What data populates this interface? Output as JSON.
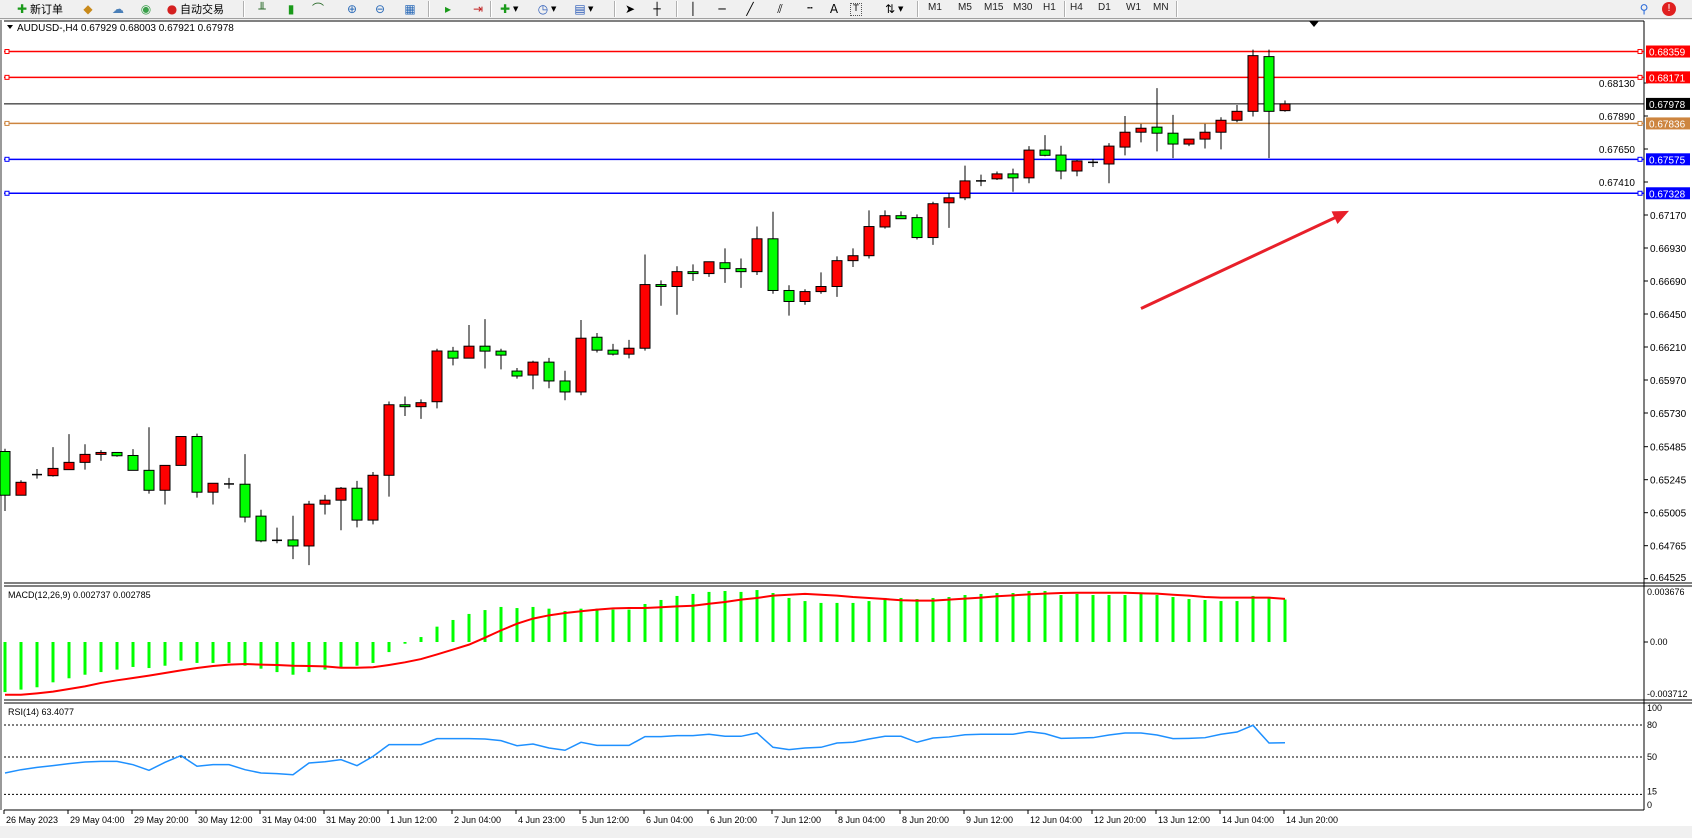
{
  "toolbar": {
    "items": [
      {
        "icon": "new-order-icon",
        "label": "新订单"
      },
      {
        "icon": "market-watch-icon",
        "label": ""
      },
      {
        "icon": "data-window-icon",
        "label": ""
      },
      {
        "icon": "signals-icon",
        "label": ""
      },
      {
        "icon": "auto-trading-icon",
        "label": "自动交易"
      }
    ],
    "chart_tools": [
      "bar-chart-icon",
      "candlestick-icon",
      "line-chart-icon",
      "zoom-in-icon",
      "zoom-out-icon",
      "tile-windows-icon",
      "auto-scroll-icon",
      "chart-shift-icon",
      "indicators-icon",
      "periods-icon",
      "templates-icon"
    ],
    "draw_tools": [
      "cursor-icon",
      "crosshair-icon",
      "vertical-line-icon",
      "horizontal-line-icon",
      "trendline-icon",
      "channel-icon",
      "fibonacci-icon",
      "text-icon",
      "text-label-icon",
      "arrows-icon"
    ],
    "timeframes": [
      "M1",
      "M5",
      "M15",
      "M30",
      "H1",
      "H4",
      "D1",
      "W1",
      "MN"
    ],
    "active_timeframe": "H4",
    "search_icon": "search-icon",
    "messages_icon": "chat-notification-icon"
  },
  "chart_data": {
    "type": "candlestick",
    "title": "AUDUSD-,H4  0.67929 0.68003 0.67921 0.67978",
    "symbol": "AUDUSD-",
    "period": "H4",
    "colors": {
      "bull": "#ff0000",
      "bear": "#00ff00",
      "outline": "#000000",
      "macd_hist": "#00ff00",
      "macd_signal": "#ff0000",
      "rsi": "#1e90ff"
    },
    "price_range": [
      0.6445,
      0.6848
    ],
    "price_ticks": [
      "0.68130",
      "0.67890",
      "0.67650",
      "0.67410",
      "0.67170",
      "0.66930",
      "0.66690",
      "0.66450",
      "0.66210",
      "0.65970",
      "0.65730",
      "0.65485",
      "0.65245",
      "0.65005",
      "0.64765",
      "0.64525"
    ],
    "levels": [
      {
        "value": "0.68359",
        "color": "#ff0000",
        "label_bg": "#ff0000"
      },
      {
        "value": "0.68171",
        "color": "#ff0000",
        "label_bg": "#ff0000"
      },
      {
        "value": "0.67978",
        "color": "#000000",
        "label_bg": "#000000",
        "current": true
      },
      {
        "value": "0.67836",
        "color": "#cd853f",
        "label_bg": "#cd853f"
      },
      {
        "value": "0.67575",
        "color": "#0000ff",
        "label_bg": "#0000ff"
      },
      {
        "value": "0.67328",
        "color": "#0000ff",
        "label_bg": "#0000ff"
      }
    ],
    "annotation_arrow": {
      "color": "#e8202a",
      "from_price": 0.6649,
      "to_price": 0.672,
      "from_bar": 71,
      "to_bar": 84
    },
    "time_labels": [
      "26 May 2023",
      "29 May 04:00",
      "29 May 20:00",
      "30 May 12:00",
      "31 May 04:00",
      "31 May 20:00",
      "1 Jun 12:00",
      "2 Jun 04:00",
      "4 Jun 23:00",
      "5 Jun 12:00",
      "6 Jun 04:00",
      "6 Jun 20:00",
      "7 Jun 12:00",
      "8 Jun 04:00",
      "8 Jun 20:00",
      "9 Jun 12:00",
      "12 Jun 04:00",
      "12 Jun 20:00",
      "13 Jun 12:00",
      "14 Jun 04:00",
      "14 Jun 20:00"
    ],
    "ohlc": [
      [
        0.6545,
        0.6547,
        0.65017,
        0.65132
      ],
      [
        0.65132,
        0.65241,
        0.65132,
        0.65226
      ],
      [
        0.65282,
        0.65323,
        0.65253,
        0.65282
      ],
      [
        0.65274,
        0.65482,
        0.65267,
        0.65327
      ],
      [
        0.65318,
        0.65576,
        0.65318,
        0.65371
      ],
      [
        0.65371,
        0.65503,
        0.65318,
        0.65429
      ],
      [
        0.65429,
        0.6546,
        0.65383,
        0.65443
      ],
      [
        0.65443,
        0.65443,
        0.65412,
        0.65419
      ],
      [
        0.65421,
        0.65467,
        0.65313,
        0.65313
      ],
      [
        0.65313,
        0.65626,
        0.65144,
        0.65168
      ],
      [
        0.65168,
        0.65349,
        0.65065,
        0.65349
      ],
      [
        0.65349,
        0.65559,
        0.65349,
        0.65559
      ],
      [
        0.65559,
        0.6558,
        0.65115,
        0.65154
      ],
      [
        0.65154,
        0.65219,
        0.65065,
        0.65219
      ],
      [
        0.65214,
        0.65258,
        0.6518,
        0.65214
      ],
      [
        0.65212,
        0.65431,
        0.64935,
        0.64973
      ],
      [
        0.6498,
        0.65026,
        0.6479,
        0.648
      ],
      [
        0.64804,
        0.64896,
        0.64783,
        0.64804
      ],
      [
        0.64807,
        0.64983,
        0.64667,
        0.64763
      ],
      [
        0.64763,
        0.65091,
        0.64624,
        0.65067
      ],
      [
        0.65067,
        0.65135,
        0.64992,
        0.65096
      ],
      [
        0.65096,
        0.65192,
        0.64877,
        0.65183
      ],
      [
        0.65183,
        0.65236,
        0.64898,
        0.64951
      ],
      [
        0.64951,
        0.65301,
        0.6492,
        0.65277
      ],
      [
        0.65277,
        0.65814,
        0.65122,
        0.6579
      ],
      [
        0.6579,
        0.6585,
        0.65708,
        0.65776
      ],
      [
        0.65776,
        0.65829,
        0.65687,
        0.65805
      ],
      [
        0.65812,
        0.66197,
        0.65764,
        0.66181
      ],
      [
        0.6618,
        0.66211,
        0.66076,
        0.66129
      ],
      [
        0.66129,
        0.6637,
        0.66129,
        0.66216
      ],
      [
        0.66216,
        0.66413,
        0.66054,
        0.6618
      ],
      [
        0.6618,
        0.66197,
        0.66047,
        0.66151
      ],
      [
        0.66035,
        0.66057,
        0.6598,
        0.65999
      ],
      [
        0.66006,
        0.6611,
        0.65903,
        0.661
      ],
      [
        0.661,
        0.66131,
        0.6591,
        0.65963
      ],
      [
        0.65963,
        0.66037,
        0.65823,
        0.65883
      ],
      [
        0.65883,
        0.66406,
        0.65859,
        0.66274
      ],
      [
        0.66281,
        0.66312,
        0.6617,
        0.66187
      ],
      [
        0.66187,
        0.66233,
        0.66148,
        0.66158
      ],
      [
        0.66158,
        0.66262,
        0.66127,
        0.66201
      ],
      [
        0.66201,
        0.66883,
        0.66184,
        0.66664
      ],
      [
        0.66664,
        0.66695,
        0.6651,
        0.6665
      ],
      [
        0.6665,
        0.66797,
        0.66445,
        0.66758
      ],
      [
        0.66758,
        0.66811,
        0.66691,
        0.66744
      ],
      [
        0.66744,
        0.6683,
        0.6672,
        0.6683
      ],
      [
        0.66823,
        0.66927,
        0.66676,
        0.6678
      ],
      [
        0.6678,
        0.66854,
        0.6664,
        0.66758
      ],
      [
        0.66758,
        0.67086,
        0.66734,
        0.66997
      ],
      [
        0.66997,
        0.67194,
        0.66597,
        0.66621
      ],
      [
        0.66621,
        0.66659,
        0.66438,
        0.66541
      ],
      [
        0.66541,
        0.6663,
        0.66517,
        0.66613
      ],
      [
        0.66613,
        0.66753,
        0.66597,
        0.6665
      ],
      [
        0.6665,
        0.66869,
        0.66575,
        0.66838
      ],
      [
        0.66838,
        0.66927,
        0.66792,
        0.66874
      ],
      [
        0.66874,
        0.67204,
        0.66854,
        0.67086
      ],
      [
        0.67083,
        0.67204,
        0.67071,
        0.67165
      ],
      [
        0.67165,
        0.67196,
        0.67143,
        0.67143
      ],
      [
        0.67151,
        0.67175,
        0.66992,
        0.67006
      ],
      [
        0.67006,
        0.67266,
        0.66953,
        0.67252
      ],
      [
        0.67259,
        0.67331,
        0.67076,
        0.67295
      ],
      [
        0.67295,
        0.67529,
        0.67278,
        0.67418
      ],
      [
        0.67418,
        0.67464,
        0.6738,
        0.67418
      ],
      [
        0.67433,
        0.67486,
        0.67425,
        0.67469
      ],
      [
        0.67469,
        0.67507,
        0.67339,
        0.6744
      ],
      [
        0.6744,
        0.67671,
        0.67401,
        0.67642
      ],
      [
        0.67642,
        0.67751,
        0.67597,
        0.67604
      ],
      [
        0.67606,
        0.67674,
        0.6743,
        0.6749
      ],
      [
        0.6749,
        0.6757,
        0.67452,
        0.67563
      ],
      [
        0.67553,
        0.67577,
        0.67519,
        0.67553
      ],
      [
        0.67541,
        0.67693,
        0.67401,
        0.67671
      ],
      [
        0.67664,
        0.6789,
        0.67604,
        0.67772
      ],
      [
        0.67772,
        0.67833,
        0.67698,
        0.67801
      ],
      [
        0.67809,
        0.68093,
        0.67633,
        0.67765
      ],
      [
        0.67765,
        0.67898,
        0.67584,
        0.67686
      ],
      [
        0.67686,
        0.67722,
        0.67671,
        0.67722
      ],
      [
        0.67722,
        0.67833,
        0.67654,
        0.67772
      ],
      [
        0.67772,
        0.67881,
        0.67647,
        0.67859
      ],
      [
        0.67859,
        0.6797,
        0.67845,
        0.67924
      ],
      [
        0.67924,
        0.68373,
        0.67886,
        0.68329
      ],
      [
        0.68322,
        0.68373,
        0.67584,
        0.67924
      ],
      [
        0.67929,
        0.68003,
        0.67921,
        0.67978
      ]
    ],
    "macd": {
      "label": "MACD(12,26,9) 0.002737 0.002785",
      "ticks": [
        "0.003676",
        "0.00",
        "-0.003712"
      ],
      "range": [
        -0.003712,
        0.003676
      ],
      "histogram": [
        -0.00323,
        -0.00307,
        -0.00292,
        -0.0026,
        -0.00234,
        -0.00211,
        -0.00194,
        -0.00178,
        -0.00161,
        -0.00168,
        -0.00153,
        -0.0012,
        -0.00135,
        -0.00135,
        -0.00135,
        -0.00153,
        -0.00172,
        -0.00194,
        -0.00211,
        -0.00194,
        -0.00178,
        -0.00161,
        -0.00153,
        -0.00135,
        -0.00065,
        -0.00011,
        0.00032,
        0.00099,
        0.00142,
        0.00181,
        0.00206,
        0.00226,
        0.00219,
        0.00226,
        0.00215,
        0.002,
        0.00215,
        0.00215,
        0.00209,
        0.00209,
        0.00245,
        0.00271,
        0.00297,
        0.0031,
        0.00323,
        0.00329,
        0.00323,
        0.00335,
        0.00316,
        0.00284,
        0.00264,
        0.00252,
        0.00252,
        0.00252,
        0.00264,
        0.00284,
        0.00284,
        0.00277,
        0.00284,
        0.0029,
        0.00303,
        0.0031,
        0.00316,
        0.00316,
        0.00329,
        0.00329,
        0.00303,
        0.0031,
        0.00303,
        0.00303,
        0.00303,
        0.0031,
        0.00303,
        0.0029,
        0.00277,
        0.00271,
        0.00264,
        0.00264,
        0.00297,
        0.00284,
        0.00274
      ],
      "signal": [
        -0.0034,
        -0.0034,
        -0.00331,
        -0.0032,
        -0.00303,
        -0.00286,
        -0.00264,
        -0.00247,
        -0.00232,
        -0.00217,
        -0.002,
        -0.00183,
        -0.00168,
        -0.00155,
        -0.00146,
        -0.00142,
        -0.00146,
        -0.00148,
        -0.00153,
        -0.00155,
        -0.00157,
        -0.00166,
        -0.00166,
        -0.00163,
        -0.00148,
        -0.00131,
        -0.0011,
        -0.0008,
        -0.00049,
        -0.00017,
        0.00028,
        0.00075,
        0.00118,
        0.00151,
        0.00172,
        0.00187,
        0.00198,
        0.00209,
        0.00217,
        0.00219,
        0.00219,
        0.00224,
        0.0023,
        0.00234,
        0.00247,
        0.00258,
        0.00273,
        0.00284,
        0.00299,
        0.00305,
        0.0031,
        0.00305,
        0.00299,
        0.0029,
        0.00284,
        0.00277,
        0.00269,
        0.00267,
        0.00267,
        0.00273,
        0.0028,
        0.00286,
        0.00295,
        0.00301,
        0.00307,
        0.00312,
        0.00316,
        0.00318,
        0.00318,
        0.00318,
        0.00318,
        0.00314,
        0.00312,
        0.00305,
        0.00299,
        0.0029,
        0.00286,
        0.00286,
        0.00286,
        0.00286,
        0.002785
      ]
    },
    "rsi": {
      "label": "RSI(14) 63.4077",
      "ticks": [
        "100",
        "80",
        "50",
        "15",
        "0"
      ],
      "levels": [
        80,
        50,
        15
      ],
      "range": [
        0,
        100
      ],
      "values": [
        35.0,
        38.1,
        40.3,
        41.9,
        43.8,
        45.3,
        45.9,
        45.9,
        42.8,
        37.5,
        45.0,
        51.3,
        41.3,
        42.8,
        42.8,
        38.1,
        35.0,
        34.4,
        33.4,
        44.4,
        45.6,
        47.5,
        41.9,
        50.6,
        61.6,
        61.6,
        61.6,
        67.2,
        67.2,
        67.2,
        66.9,
        65.3,
        60.6,
        62.2,
        58.4,
        56.3,
        63.8,
        60.9,
        60.9,
        60.9,
        69.1,
        69.1,
        70.0,
        70.0,
        71.3,
        69.4,
        69.4,
        72.5,
        59.1,
        56.9,
        58.4,
        59.1,
        63.1,
        63.8,
        66.9,
        69.4,
        69.4,
        63.8,
        67.8,
        68.8,
        70.9,
        71.3,
        71.3,
        71.3,
        73.8,
        71.9,
        67.5,
        67.8,
        68.1,
        70.6,
        72.5,
        72.5,
        70.6,
        67.2,
        67.5,
        68.1,
        71.3,
        73.4,
        79.7,
        63.1,
        63.4
      ]
    }
  }
}
